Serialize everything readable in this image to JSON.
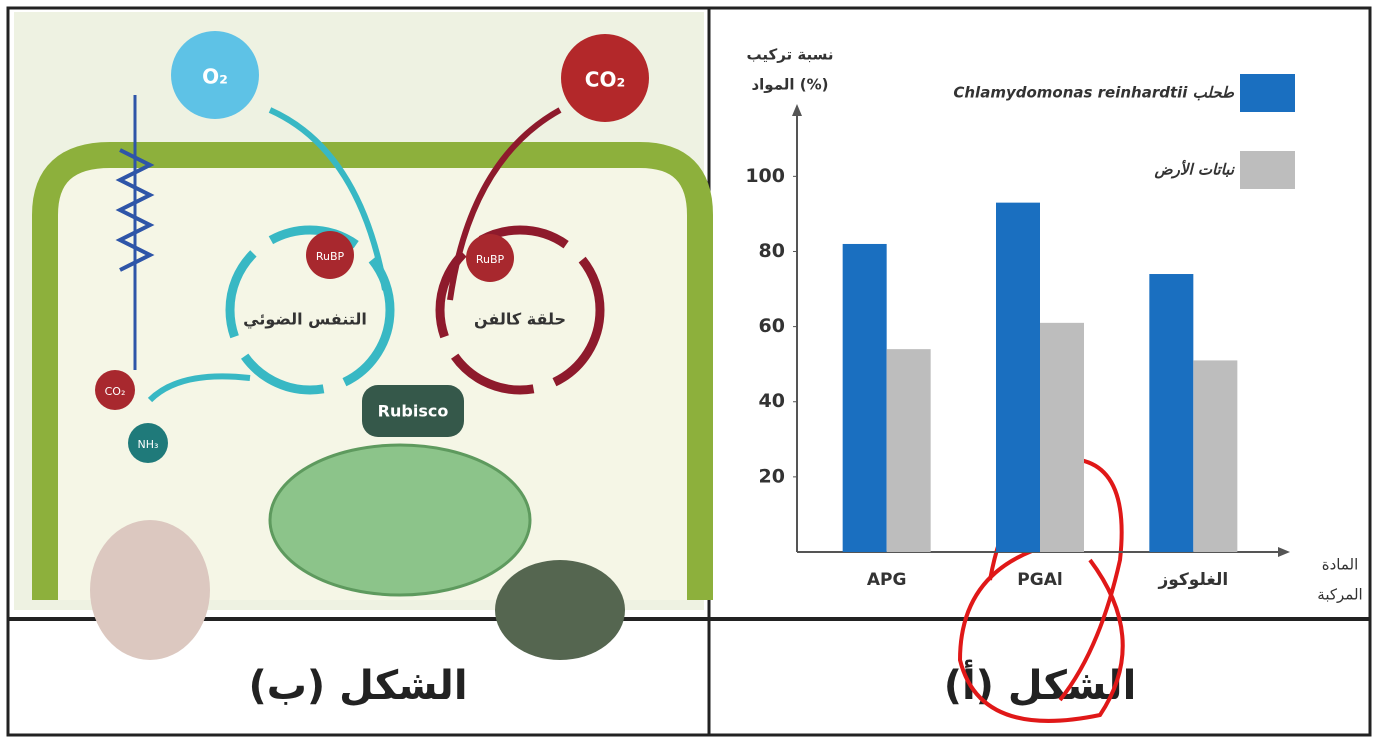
{
  "diagram": {
    "labels": {
      "o2": "O₂",
      "co2_in": "CO₂",
      "photorespiration": "التنفس الضوئي",
      "calvin_cycle": "حلقة كالفن",
      "rubp_left": "RuBP",
      "rubp_right": "RuBP",
      "rubisco": "Rubisco",
      "co2_out": "CO₂",
      "nh3": "NH₃"
    },
    "caption": "الشكل (ب)"
  },
  "chart_caption": "الشكل (أ)",
  "chart_data": {
    "type": "bar",
    "y_label": [
      "نسبة تركيب",
      "المواد (%)"
    ],
    "x_label": [
      "المادة",
      "المركبة"
    ],
    "categories": [
      "APG",
      "PGAl",
      "الغلوكوز"
    ],
    "series": [
      {
        "name": "طحلب Chlamydomonas reinhardtii",
        "color": "#1a6fc0",
        "values": [
          82,
          93,
          74
        ]
      },
      {
        "name": "نباتات الأرض",
        "color": "#bdbdbd",
        "values": [
          54,
          61,
          51
        ]
      }
    ],
    "ylim": [
      0,
      115
    ],
    "yticks": [
      20,
      40,
      60,
      80,
      100
    ],
    "legend": "upper right"
  }
}
